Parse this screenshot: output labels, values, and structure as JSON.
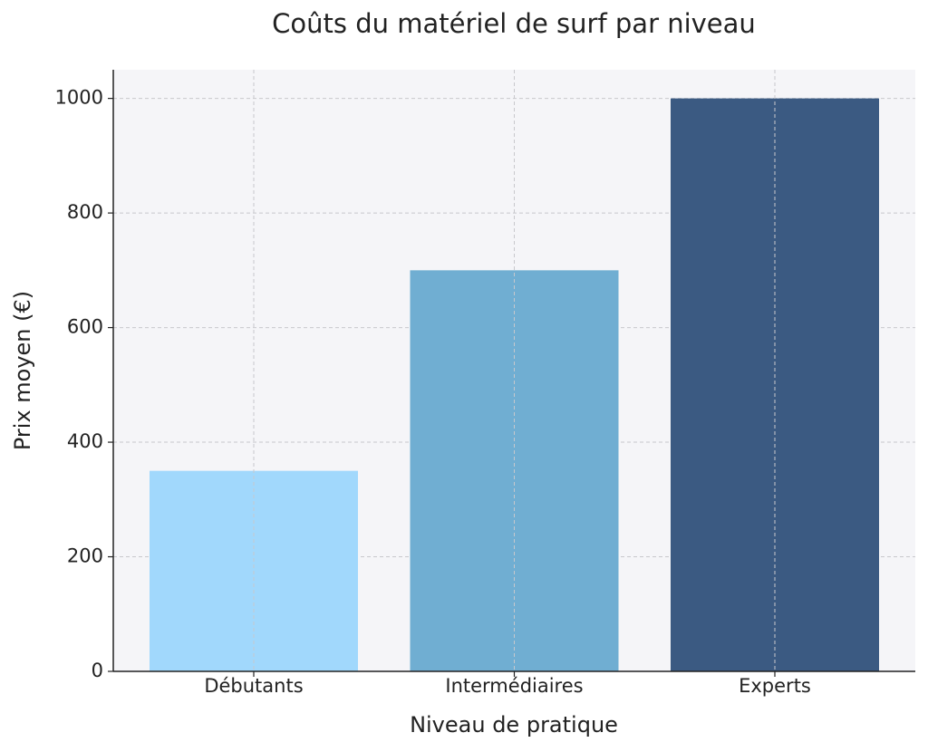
{
  "chart_data": {
    "type": "bar",
    "title": "Coûts du matériel de surf par niveau",
    "x_label": "Niveau de pratique",
    "y_label": "Prix moyen (€)",
    "categories": [
      "Débutants",
      "Intermédiaires",
      "Experts"
    ],
    "values": [
      350,
      700,
      1000
    ],
    "colors": [
      "#a1d8fc",
      "#70aed2",
      "#3b5a82"
    ],
    "ylim": [
      0,
      1050
    ],
    "yticks": [
      0,
      200,
      400,
      600,
      800,
      1000
    ],
    "grid": true
  }
}
